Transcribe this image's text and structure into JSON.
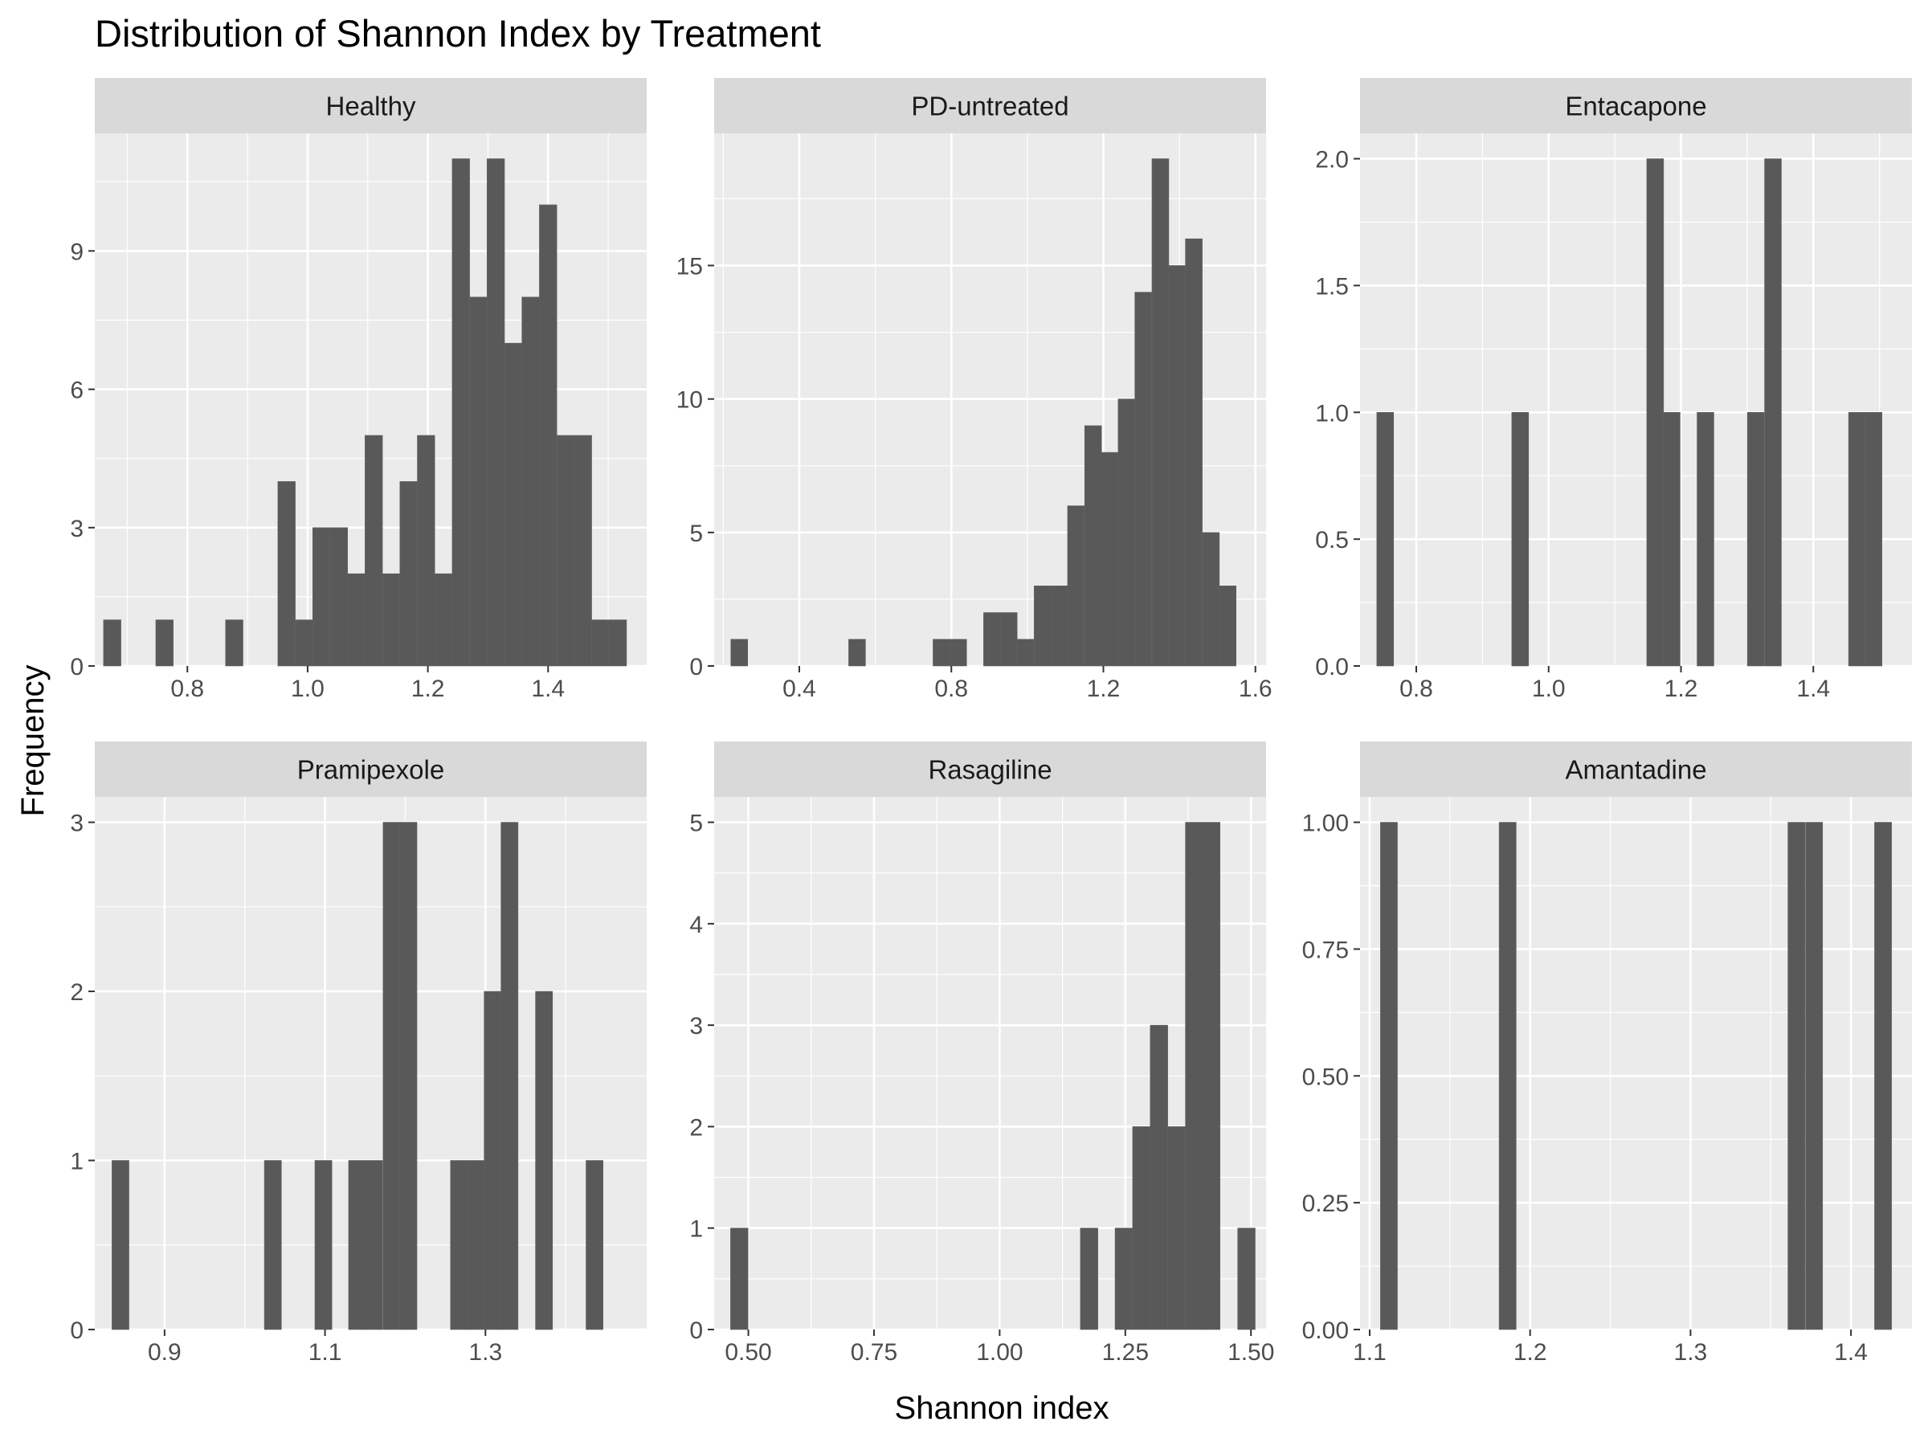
{
  "chart_data": {
    "type": "bar",
    "subtype": "faceted-histogram",
    "title": "Distribution of Shannon Index by Treatment",
    "xlabel": "Shannon index",
    "ylabel": "Frequency",
    "grid": true,
    "colors": {
      "bar": "#595959",
      "panel_background": "#ebebeb",
      "strip_background": "#d9d9d9",
      "grid": "#ffffff",
      "tick_text": "#4d4d4d"
    },
    "facets": [
      {
        "name": "Healthy",
        "binwidth": 0.029,
        "xlim": [
          0.646,
          1.564
        ],
        "ylim": [
          0,
          11.55
        ],
        "x_ticks": [
          0.8,
          1.0,
          1.2,
          1.4
        ],
        "x_tick_labels": [
          "0.8",
          "1.0",
          "1.2",
          "1.4"
        ],
        "y_ticks": [
          0,
          3,
          6,
          9
        ],
        "y_tick_labels": [
          "0",
          "3",
          "6",
          "9"
        ],
        "bins": [
          {
            "x": 0.675,
            "count": 1
          },
          {
            "x": 0.762,
            "count": 1
          },
          {
            "x": 0.878,
            "count": 1
          },
          {
            "x": 0.965,
            "count": 4
          },
          {
            "x": 0.994,
            "count": 1
          },
          {
            "x": 1.023,
            "count": 3
          },
          {
            "x": 1.052,
            "count": 3
          },
          {
            "x": 1.081,
            "count": 2
          },
          {
            "x": 1.11,
            "count": 5
          },
          {
            "x": 1.139,
            "count": 2
          },
          {
            "x": 1.168,
            "count": 4
          },
          {
            "x": 1.197,
            "count": 5
          },
          {
            "x": 1.226,
            "count": 2
          },
          {
            "x": 1.255,
            "count": 11
          },
          {
            "x": 1.284,
            "count": 8
          },
          {
            "x": 1.313,
            "count": 11
          },
          {
            "x": 1.342,
            "count": 7
          },
          {
            "x": 1.371,
            "count": 8
          },
          {
            "x": 1.4,
            "count": 10
          },
          {
            "x": 1.429,
            "count": 5
          },
          {
            "x": 1.458,
            "count": 5
          },
          {
            "x": 1.487,
            "count": 1
          },
          {
            "x": 1.516,
            "count": 1
          }
        ]
      },
      {
        "name": "PD-untreated",
        "binwidth": 0.0443,
        "xlim": [
          0.176,
          1.628
        ],
        "ylim": [
          0,
          19.95
        ],
        "x_ticks": [
          0.4,
          0.8,
          1.2,
          1.6
        ],
        "x_tick_labels": [
          "0.4",
          "0.8",
          "1.2",
          "1.6"
        ],
        "y_ticks": [
          0,
          5,
          10,
          15
        ],
        "y_tick_labels": [
          "0",
          "5",
          "10",
          "15"
        ],
        "bins": [
          {
            "x": 0.242,
            "count": 1
          },
          {
            "x": 0.552,
            "count": 1
          },
          {
            "x": 0.774,
            "count": 1
          },
          {
            "x": 0.818,
            "count": 1
          },
          {
            "x": 0.907,
            "count": 2
          },
          {
            "x": 0.951,
            "count": 2
          },
          {
            "x": 0.995,
            "count": 1
          },
          {
            "x": 1.04,
            "count": 3
          },
          {
            "x": 1.084,
            "count": 3
          },
          {
            "x": 1.128,
            "count": 6
          },
          {
            "x": 1.173,
            "count": 9
          },
          {
            "x": 1.217,
            "count": 8
          },
          {
            "x": 1.261,
            "count": 10
          },
          {
            "x": 1.305,
            "count": 14
          },
          {
            "x": 1.35,
            "count": 19
          },
          {
            "x": 1.394,
            "count": 15
          },
          {
            "x": 1.438,
            "count": 16
          },
          {
            "x": 1.483,
            "count": 5
          },
          {
            "x": 1.527,
            "count": 3
          }
        ]
      },
      {
        "name": "Entacapone",
        "binwidth": 0.0254,
        "xlim": [
          0.715,
          1.549
        ],
        "ylim": [
          0,
          2.1
        ],
        "x_ticks": [
          0.8,
          1.0,
          1.2,
          1.4
        ],
        "x_tick_labels": [
          "0.8",
          "1.0",
          "1.2",
          "1.4"
        ],
        "y_ticks": [
          0,
          0.5,
          1.0,
          1.5,
          2.0
        ],
        "y_tick_labels": [
          "0.0",
          "0.5",
          "1.0",
          "1.5",
          "2.0"
        ],
        "bins": [
          {
            "x": 0.753,
            "count": 1
          },
          {
            "x": 0.957,
            "count": 1
          },
          {
            "x": 1.161,
            "count": 2
          },
          {
            "x": 1.186,
            "count": 1
          },
          {
            "x": 1.237,
            "count": 1
          },
          {
            "x": 1.313,
            "count": 1
          },
          {
            "x": 1.339,
            "count": 2
          },
          {
            "x": 1.466,
            "count": 1
          },
          {
            "x": 1.491,
            "count": 1
          }
        ]
      },
      {
        "name": "Pramipexole",
        "binwidth": 0.0212,
        "xlim": [
          0.813,
          1.501
        ],
        "ylim": [
          0,
          3.15
        ],
        "x_ticks": [
          0.9,
          1.1,
          1.3
        ],
        "x_tick_labels": [
          "0.9",
          "1.1",
          "1.3"
        ],
        "y_ticks": [
          0,
          1,
          2,
          3
        ],
        "y_tick_labels": [
          "0",
          "1",
          "2",
          "3"
        ],
        "bins": [
          {
            "x": 0.845,
            "count": 1
          },
          {
            "x": 1.035,
            "count": 1
          },
          {
            "x": 1.098,
            "count": 1
          },
          {
            "x": 1.14,
            "count": 1
          },
          {
            "x": 1.161,
            "count": 1
          },
          {
            "x": 1.183,
            "count": 3
          },
          {
            "x": 1.204,
            "count": 3
          },
          {
            "x": 1.267,
            "count": 1
          },
          {
            "x": 1.288,
            "count": 1
          },
          {
            "x": 1.309,
            "count": 2
          },
          {
            "x": 1.33,
            "count": 3
          },
          {
            "x": 1.373,
            "count": 2
          },
          {
            "x": 1.436,
            "count": 1
          }
        ]
      },
      {
        "name": "Rasagiline",
        "binwidth": 0.0348,
        "xlim": [
          0.432,
          1.53
        ],
        "ylim": [
          0,
          5.25
        ],
        "x_ticks": [
          0.5,
          0.75,
          1.0,
          1.25,
          1.5
        ],
        "x_tick_labels": [
          "0.50",
          "0.75",
          "1.00",
          "1.25",
          "1.50"
        ],
        "y_ticks": [
          0,
          1,
          2,
          3,
          4,
          5
        ],
        "y_tick_labels": [
          "0",
          "1",
          "2",
          "3",
          "4",
          "5"
        ],
        "bins": [
          {
            "x": 0.482,
            "count": 1
          },
          {
            "x": 1.178,
            "count": 1
          },
          {
            "x": 1.247,
            "count": 1
          },
          {
            "x": 1.282,
            "count": 2
          },
          {
            "x": 1.317,
            "count": 3
          },
          {
            "x": 1.352,
            "count": 2
          },
          {
            "x": 1.387,
            "count": 5
          },
          {
            "x": 1.421,
            "count": 5
          },
          {
            "x": 1.491,
            "count": 1
          }
        ]
      },
      {
        "name": "Amantadine",
        "binwidth": 0.0106,
        "xlim": [
          1.094,
          1.438
        ],
        "ylim": [
          0,
          1.05
        ],
        "x_ticks": [
          1.1,
          1.2,
          1.3,
          1.4
        ],
        "x_tick_labels": [
          "1.1",
          "1.2",
          "1.3",
          "1.4"
        ],
        "y_ticks": [
          0,
          0.25,
          0.5,
          0.75,
          1.0
        ],
        "y_tick_labels": [
          "0.00",
          "0.25",
          "0.50",
          "0.75",
          "1.00"
        ],
        "bins": [
          {
            "x": 1.112,
            "count": 1
          },
          {
            "x": 1.186,
            "count": 1
          },
          {
            "x": 1.366,
            "count": 1
          },
          {
            "x": 1.377,
            "count": 1
          },
          {
            "x": 1.42,
            "count": 1
          }
        ]
      }
    ]
  }
}
